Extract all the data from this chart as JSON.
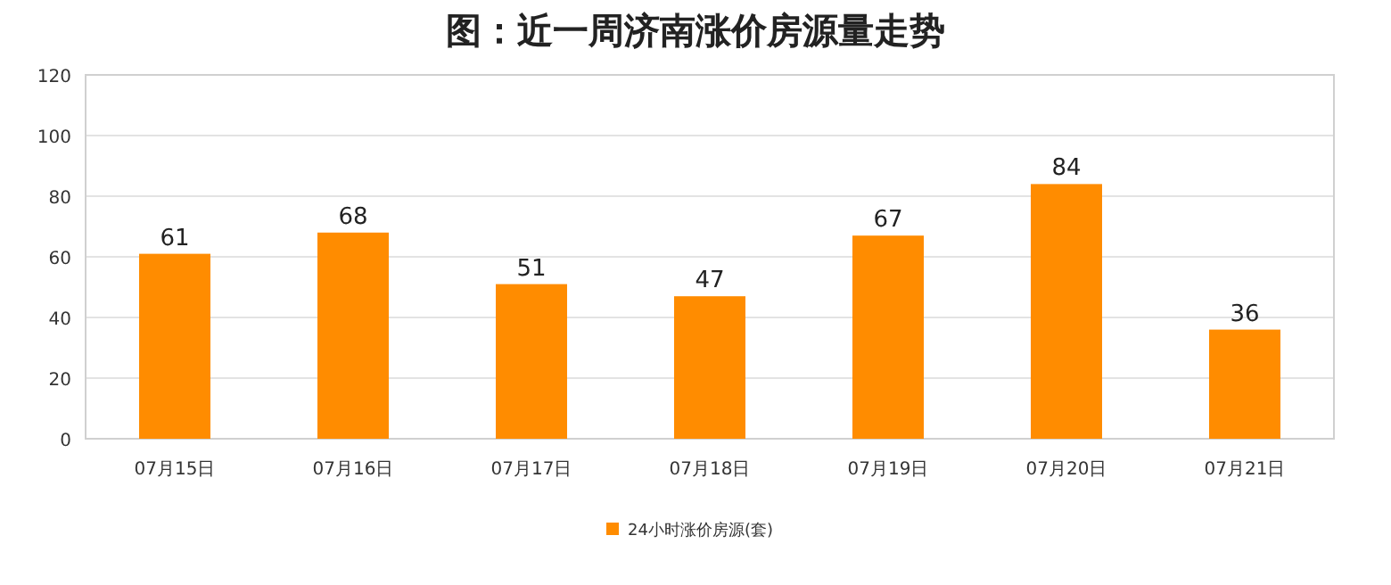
{
  "chart_data": {
    "type": "bar",
    "title": "图：近一周济南涨价房源量走势",
    "categories": [
      "07月15日",
      "07月16日",
      "07月17日",
      "07月18日",
      "07月19日",
      "07月20日",
      "07月21日"
    ],
    "series": [
      {
        "name": "24小时涨价房源(套)",
        "color": "#ff8c00",
        "values": [
          61,
          68,
          51,
          47,
          67,
          84,
          36
        ]
      }
    ],
    "ylim": [
      0,
      120
    ],
    "yticks": [
      0,
      20,
      40,
      60,
      80,
      100,
      120
    ],
    "grid": "y",
    "legend": "bottom",
    "data_labels": true
  }
}
